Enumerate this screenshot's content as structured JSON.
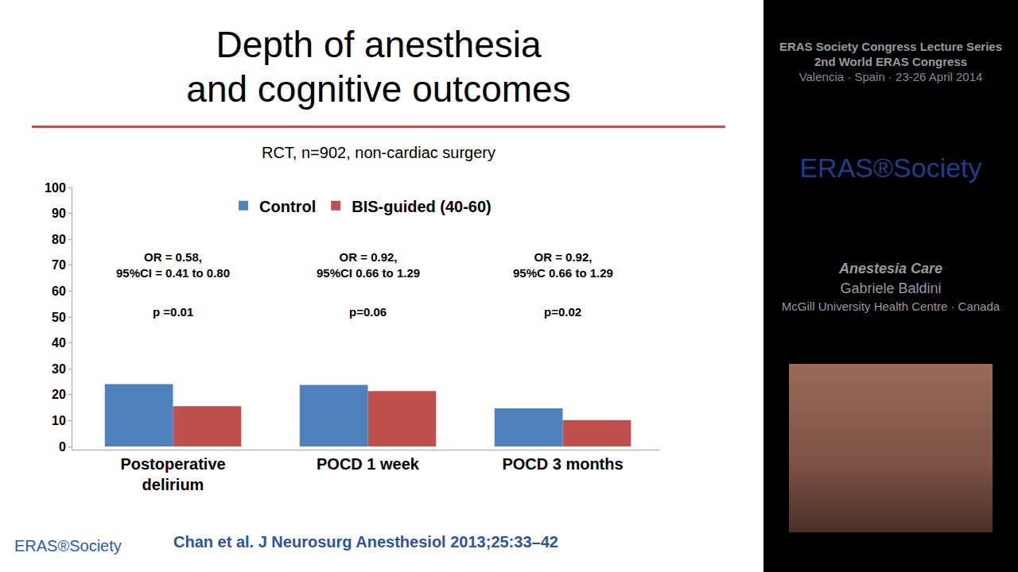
{
  "chart_data": {
    "type": "bar",
    "title": "Depth of anesthesia\nand cognitive outcomes",
    "subtitle": "RCT, n=902, non-cardiac surgery",
    "categories": [
      "Postoperative delirium",
      "POCD 1 week",
      "POCD 3 months"
    ],
    "series": [
      {
        "name": "Control",
        "color": "#4f81bd",
        "values": [
          24.1,
          23.8,
          14.7
        ]
      },
      {
        "name": "BIS-guided (40-60)",
        "color": "#c0504d",
        "values": [
          15.6,
          21.4,
          10.2
        ]
      }
    ],
    "annotations": [
      {
        "category": "Postoperative delirium",
        "text": "OR = 0.58, 95%CI = 0.41 to 0.80",
        "p": "p =0.01"
      },
      {
        "category": "POCD 1 week",
        "text": "OR = 0.92, 95%CI 0.66 to 1.29",
        "p": "p=0.06"
      },
      {
        "category": "POCD 3 months",
        "text": "OR = 0.92, 95%C 0.66 to 1.29",
        "p": "p=0.02"
      }
    ],
    "ylim": [
      0,
      100
    ],
    "yticks": [
      0,
      10,
      20,
      30,
      40,
      50,
      60,
      70,
      80,
      90,
      100
    ],
    "grid": false,
    "legend": "top",
    "data_labels": false,
    "citation": "Chan et al. J Neurosurg Anesthesiol 2013;25:33–42"
  },
  "footer_logo": "ERAS®Society",
  "sidebar": {
    "header": [
      "ERAS Society Congress Lecture Series",
      "2nd World ERAS Congress",
      "Valencia · Spain · 23-26 April 2014"
    ],
    "logo": "ERAS®Society",
    "session": "Anestesia Care",
    "speaker": "Gabriele Baldini",
    "affiliation": "McGill University Health Centre · Canada"
  }
}
